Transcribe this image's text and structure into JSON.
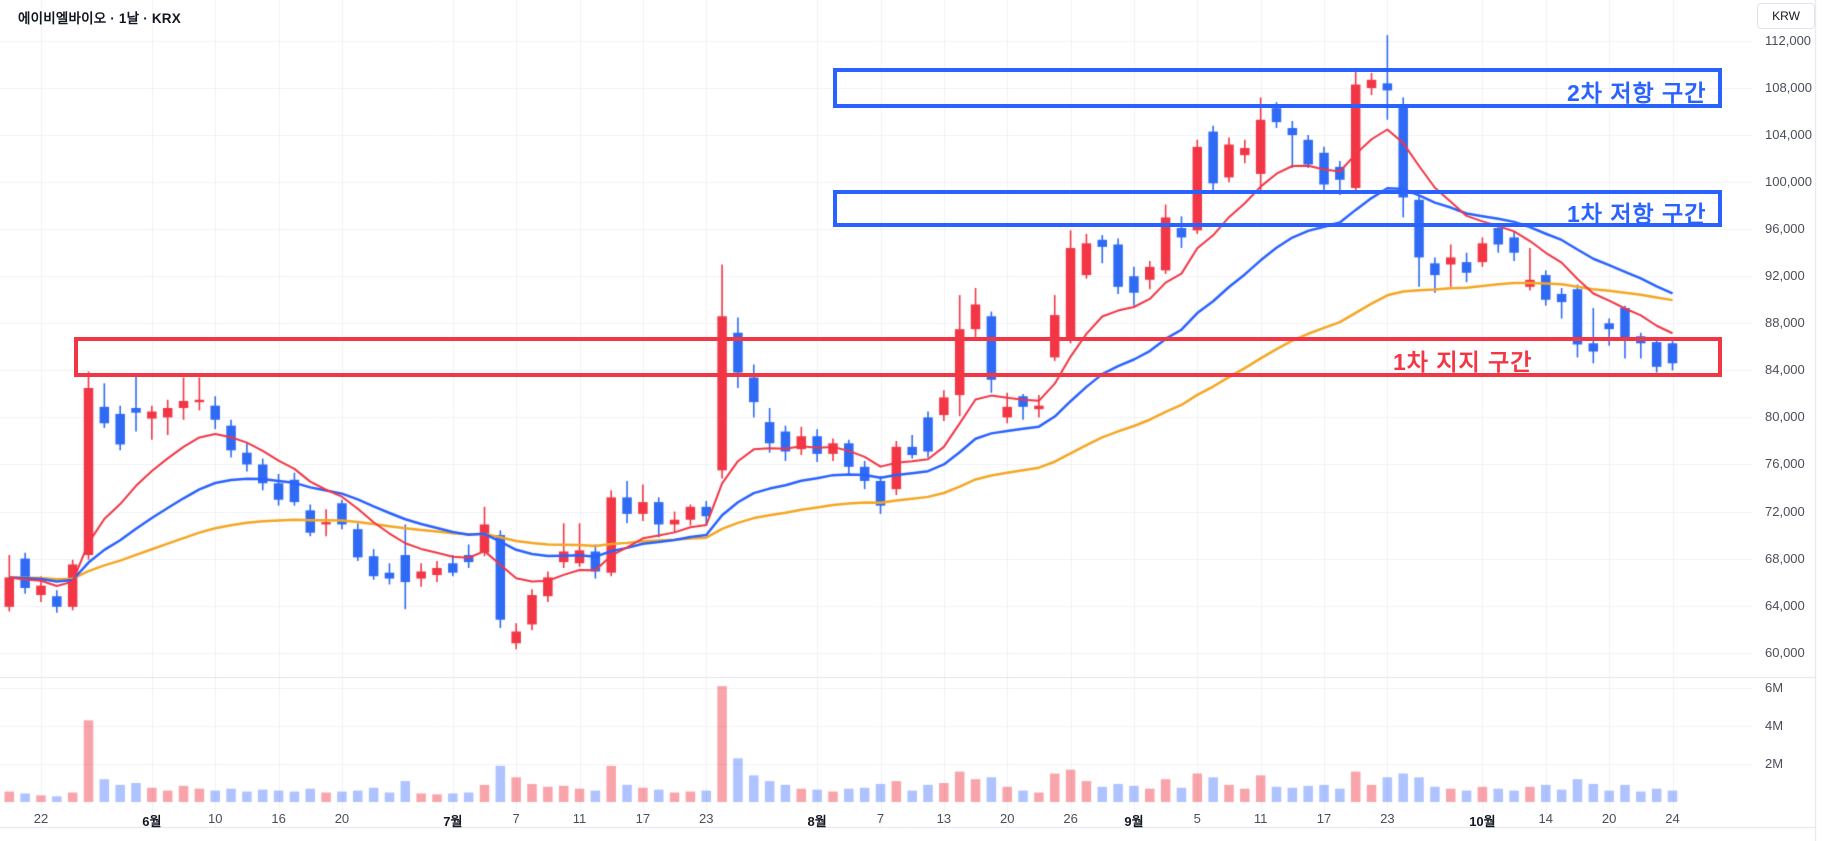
{
  "header": {
    "title": "에이비엘바이오 · 1날 · KRX"
  },
  "axis": {
    "currency_label": "KRW",
    "price_ticks": [
      {
        "value": 112000,
        "label": "112,000"
      },
      {
        "value": 108000,
        "label": "108,000"
      },
      {
        "value": 104000,
        "label": "104,000"
      },
      {
        "value": 100000,
        "label": "100,000"
      },
      {
        "value": 96000,
        "label": "96,000"
      },
      {
        "value": 92000,
        "label": "92,000"
      },
      {
        "value": 88000,
        "label": "88,000"
      },
      {
        "value": 84000,
        "label": "84,000"
      },
      {
        "value": 80000,
        "label": "80,000"
      },
      {
        "value": 76000,
        "label": "76,000"
      },
      {
        "value": 72000,
        "label": "72,000"
      },
      {
        "value": 68000,
        "label": "68,000"
      },
      {
        "value": 64000,
        "label": "64,000"
      },
      {
        "value": 60000,
        "label": "60,000"
      }
    ],
    "volume_ticks": [
      {
        "value": 6,
        "label": "6M"
      },
      {
        "value": 4,
        "label": "4M"
      },
      {
        "value": 2,
        "label": "2M"
      }
    ]
  },
  "zones": [
    {
      "id": "resistance-2",
      "label": "2차 저항 구간",
      "price_from": 106300,
      "price_to": 109700,
      "color": "#2962ff"
    },
    {
      "id": "resistance-1",
      "label": "1차 저항 구간",
      "price_from": 96200,
      "price_to": 99300,
      "color": "#2962ff"
    },
    {
      "id": "support-1",
      "label": "1차 지지 구간",
      "price_from": 83400,
      "price_to": 86800,
      "color": "#f23645"
    }
  ],
  "colors": {
    "up": "#f23645",
    "down": "#2f6af5",
    "volume_up": "rgba(242,54,69,0.45)",
    "volume_down": "rgba(41,98,255,0.38)",
    "ma_fast": "#f23645",
    "ma_mid": "#2962ff",
    "ma_slow": "#f5a623",
    "grid": "#f0f2f6",
    "pane_border": "#e0e3eb"
  },
  "chart_data": {
    "type": "candlestick",
    "symbol": "에이비엘바이오",
    "interval": "1날",
    "exchange": "KRX",
    "currency": "KRW",
    "price_axis_range": [
      57800,
      115500
    ],
    "volume_axis_unit": "M",
    "moving_averages": [
      {
        "name": "fast",
        "type": "ema",
        "period": 9,
        "color": "#f23645"
      },
      {
        "name": "mid",
        "type": "ema",
        "period": 21,
        "color": "#2962ff"
      },
      {
        "name": "slow",
        "type": "ema",
        "period": 50,
        "color": "#f5a623"
      }
    ],
    "x_ticks": [
      {
        "index": 2,
        "label": "22",
        "bold": false
      },
      {
        "index": 9,
        "label": "6월",
        "bold": true
      },
      {
        "index": 13,
        "label": "10",
        "bold": false
      },
      {
        "index": 17,
        "label": "16",
        "bold": false
      },
      {
        "index": 21,
        "label": "20",
        "bold": false
      },
      {
        "index": 28,
        "label": "7월",
        "bold": true
      },
      {
        "index": 32,
        "label": "7",
        "bold": false
      },
      {
        "index": 36,
        "label": "11",
        "bold": false
      },
      {
        "index": 40,
        "label": "17",
        "bold": false
      },
      {
        "index": 44,
        "label": "23",
        "bold": false
      },
      {
        "index": 51,
        "label": "8월",
        "bold": true
      },
      {
        "index": 55,
        "label": "7",
        "bold": false
      },
      {
        "index": 59,
        "label": "13",
        "bold": false
      },
      {
        "index": 63,
        "label": "20",
        "bold": false
      },
      {
        "index": 67,
        "label": "26",
        "bold": false
      },
      {
        "index": 71,
        "label": "9월",
        "bold": true
      },
      {
        "index": 75,
        "label": "5",
        "bold": false
      },
      {
        "index": 79,
        "label": "11",
        "bold": false
      },
      {
        "index": 83,
        "label": "17",
        "bold": false
      },
      {
        "index": 87,
        "label": "23",
        "bold": false
      },
      {
        "index": 93,
        "label": "10월",
        "bold": true
      },
      {
        "index": 97,
        "label": "14",
        "bold": false
      },
      {
        "index": 101,
        "label": "20",
        "bold": false
      },
      {
        "index": 105,
        "label": "24",
        "bold": false
      }
    ],
    "columns": [
      "open",
      "high",
      "low",
      "close",
      "volume_millions"
    ],
    "candles": [
      [
        63900,
        68300,
        63500,
        66400,
        0.55
      ],
      [
        68000,
        68500,
        65000,
        65500,
        0.45
      ],
      [
        64900,
        66500,
        64300,
        65700,
        0.35
      ],
      [
        64800,
        65300,
        63400,
        63900,
        0.3
      ],
      [
        63900,
        67900,
        63600,
        67500,
        0.5
      ],
      [
        68300,
        83900,
        67900,
        82500,
        4.3
      ],
      [
        80900,
        82900,
        79100,
        79500,
        1.2
      ],
      [
        80300,
        81000,
        77200,
        77700,
        0.9
      ],
      [
        80800,
        83600,
        78800,
        80400,
        1.0
      ],
      [
        79900,
        81000,
        78100,
        80500,
        0.75
      ],
      [
        80000,
        81500,
        78500,
        80800,
        0.6
      ],
      [
        80800,
        83400,
        79800,
        81400,
        0.85
      ],
      [
        81300,
        83400,
        80600,
        81500,
        0.7
      ],
      [
        81000,
        81800,
        79000,
        79800,
        0.6
      ],
      [
        79300,
        79800,
        76600,
        77200,
        0.7
      ],
      [
        77000,
        77800,
        75400,
        76000,
        0.55
      ],
      [
        76000,
        76500,
        73800,
        74400,
        0.65
      ],
      [
        74400,
        75200,
        72500,
        73000,
        0.6
      ],
      [
        74700,
        75300,
        72500,
        72800,
        0.55
      ],
      [
        72100,
        72600,
        69900,
        70200,
        0.7
      ],
      [
        70900,
        72200,
        69900,
        71100,
        0.5
      ],
      [
        72700,
        73000,
        70500,
        70900,
        0.55
      ],
      [
        70500,
        71000,
        67800,
        68100,
        0.6
      ],
      [
        68200,
        68800,
        66200,
        66500,
        0.75
      ],
      [
        66800,
        67600,
        65800,
        66300,
        0.5
      ],
      [
        68300,
        70900,
        63700,
        66000,
        1.1
      ],
      [
        66300,
        67600,
        65600,
        66900,
        0.45
      ],
      [
        66600,
        67800,
        66000,
        67200,
        0.4
      ],
      [
        67600,
        68300,
        66500,
        66800,
        0.45
      ],
      [
        68300,
        69200,
        67200,
        67700,
        0.5
      ],
      [
        68500,
        72400,
        68200,
        70900,
        0.9
      ],
      [
        70000,
        70400,
        62100,
        62800,
        1.9
      ],
      [
        60800,
        62500,
        60300,
        61800,
        1.3
      ],
      [
        62400,
        65400,
        61900,
        64900,
        0.95
      ],
      [
        64800,
        66900,
        64300,
        66400,
        0.8
      ],
      [
        67700,
        71000,
        67200,
        68600,
        0.85
      ],
      [
        67600,
        71000,
        67300,
        68700,
        0.7
      ],
      [
        68600,
        69200,
        66300,
        66900,
        0.6
      ],
      [
        66800,
        73800,
        66500,
        73200,
        1.9
      ],
      [
        73200,
        74600,
        71000,
        71800,
        0.9
      ],
      [
        71800,
        74300,
        71200,
        72800,
        0.75
      ],
      [
        72800,
        73200,
        69800,
        70900,
        0.65
      ],
      [
        70900,
        72000,
        70200,
        71300,
        0.5
      ],
      [
        71300,
        72600,
        70800,
        72400,
        0.55
      ],
      [
        72400,
        72900,
        70800,
        71600,
        0.6
      ],
      [
        75500,
        93000,
        74800,
        88600,
        6.1
      ],
      [
        87200,
        88500,
        82500,
        83800,
        2.3
      ],
      [
        83400,
        84500,
        80000,
        81300,
        1.4
      ],
      [
        79600,
        80800,
        77000,
        77800,
        1.1
      ],
      [
        78800,
        79300,
        76300,
        77100,
        0.9
      ],
      [
        77300,
        79200,
        76800,
        78400,
        0.7
      ],
      [
        78400,
        79000,
        76200,
        76900,
        0.65
      ],
      [
        76900,
        78200,
        76300,
        77800,
        0.55
      ],
      [
        77800,
        78100,
        75200,
        75800,
        0.7
      ],
      [
        75800,
        76300,
        73900,
        74600,
        0.75
      ],
      [
        74600,
        75000,
        71800,
        72500,
        0.95
      ],
      [
        73900,
        78000,
        73400,
        77500,
        1.1
      ],
      [
        77500,
        78500,
        76500,
        76800,
        0.6
      ],
      [
        80000,
        80500,
        76600,
        77100,
        0.9
      ],
      [
        80200,
        82300,
        79700,
        81700,
        1.0
      ],
      [
        81900,
        90400,
        80100,
        87500,
        1.6
      ],
      [
        87500,
        91000,
        86800,
        89600,
        1.2
      ],
      [
        88600,
        89000,
        82100,
        83200,
        1.3
      ],
      [
        80000,
        82100,
        79500,
        80900,
        0.8
      ],
      [
        81800,
        82000,
        79800,
        80900,
        0.6
      ],
      [
        80700,
        81900,
        80000,
        81000,
        0.5
      ],
      [
        85100,
        90400,
        84800,
        88700,
        1.5
      ],
      [
        86600,
        95900,
        86300,
        94400,
        1.7
      ],
      [
        92100,
        95600,
        91800,
        94800,
        1.1
      ],
      [
        95100,
        95500,
        93100,
        94500,
        0.8
      ],
      [
        94700,
        95200,
        90500,
        91100,
        0.95
      ],
      [
        92000,
        92800,
        89500,
        90600,
        0.85
      ],
      [
        91700,
        93300,
        90900,
        92800,
        0.7
      ],
      [
        92500,
        98100,
        92200,
        97000,
        1.2
      ],
      [
        96100,
        97100,
        94400,
        95300,
        0.75
      ],
      [
        95900,
        103600,
        95600,
        103000,
        1.5
      ],
      [
        104300,
        104800,
        99300,
        99900,
        1.3
      ],
      [
        100400,
        103800,
        100000,
        103200,
        0.9
      ],
      [
        102300,
        103600,
        101600,
        102900,
        0.7
      ],
      [
        100700,
        107200,
        99200,
        105300,
        1.4
      ],
      [
        106300,
        106800,
        104600,
        105100,
        0.8
      ],
      [
        104600,
        105200,
        101200,
        104000,
        0.75
      ],
      [
        103600,
        104000,
        101200,
        101500,
        0.85
      ],
      [
        102500,
        103000,
        99300,
        99800,
        0.9
      ],
      [
        101300,
        101800,
        98900,
        100200,
        0.7
      ],
      [
        99500,
        109700,
        99200,
        108300,
        1.6
      ],
      [
        108000,
        109300,
        107400,
        108700,
        0.9
      ],
      [
        108400,
        112500,
        105300,
        107800,
        1.3
      ],
      [
        106400,
        107200,
        97000,
        98700,
        1.5
      ],
      [
        98500,
        98900,
        91100,
        93600,
        1.3
      ],
      [
        93100,
        93600,
        90600,
        92100,
        0.8
      ],
      [
        93000,
        94700,
        91100,
        93600,
        0.7
      ],
      [
        93200,
        94000,
        91500,
        92300,
        0.6
      ],
      [
        93200,
        95300,
        92800,
        94800,
        0.8
      ],
      [
        96100,
        96500,
        94000,
        94700,
        0.7
      ],
      [
        95300,
        95800,
        93300,
        94000,
        0.6
      ],
      [
        91100,
        94400,
        90800,
        91700,
        0.8
      ],
      [
        92100,
        92500,
        89500,
        90000,
        0.9
      ],
      [
        90500,
        91000,
        88400,
        89800,
        0.65
      ],
      [
        90900,
        91300,
        85100,
        86200,
        1.2
      ],
      [
        86300,
        89300,
        84600,
        85600,
        0.95
      ],
      [
        88000,
        88400,
        86100,
        87500,
        0.6
      ],
      [
        89300,
        89500,
        85000,
        86600,
        0.9
      ],
      [
        86900,
        87200,
        85000,
        86300,
        0.55
      ],
      [
        86400,
        86700,
        83800,
        84300,
        0.7
      ],
      [
        86300,
        86500,
        84000,
        84600,
        0.6
      ]
    ]
  }
}
